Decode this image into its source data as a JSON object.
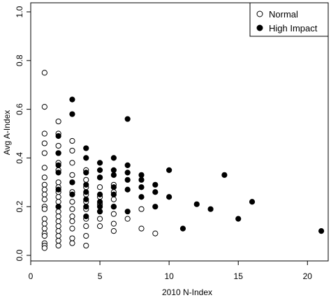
{
  "chart_data": {
    "type": "scatter",
    "xlabel": "2010 N-Index",
    "ylabel": "Avg A-Index",
    "xlim": [
      0,
      21.5
    ],
    "ylim": [
      0,
      1.0
    ],
    "xticks": [
      "0",
      "5",
      "10",
      "15",
      "20"
    ],
    "xtick_values": [
      0,
      5,
      10,
      15,
      20
    ],
    "yticks": [
      "0.0",
      "0.2",
      "0.4",
      "0.6",
      "0.8",
      "1.0"
    ],
    "ytick_values": [
      0,
      0.2,
      0.4,
      0.6,
      0.8,
      1.0
    ],
    "grid": false,
    "legend_position": "top-right",
    "series": [
      {
        "name": "Normal",
        "marker": "open-circle",
        "color": "#000000",
        "points": [
          [
            1,
            0.75
          ],
          [
            1,
            0.61
          ],
          [
            1,
            0.5
          ],
          [
            1,
            0.46
          ],
          [
            1,
            0.42
          ],
          [
            1,
            0.36
          ],
          [
            1,
            0.32
          ],
          [
            1,
            0.29
          ],
          [
            1,
            0.27
          ],
          [
            1,
            0.25
          ],
          [
            1,
            0.23
          ],
          [
            1,
            0.2
          ],
          [
            1,
            0.19
          ],
          [
            1,
            0.15
          ],
          [
            1,
            0.13
          ],
          [
            1,
            0.11
          ],
          [
            1,
            0.09
          ],
          [
            1,
            0.08
          ],
          [
            1,
            0.05
          ],
          [
            1,
            0.04
          ],
          [
            1,
            0.03
          ],
          [
            2,
            0.55
          ],
          [
            2,
            0.5
          ],
          [
            2,
            0.45
          ],
          [
            2,
            0.42
          ],
          [
            2,
            0.38
          ],
          [
            2,
            0.35
          ],
          [
            2,
            0.3
          ],
          [
            2,
            0.28
          ],
          [
            2,
            0.26
          ],
          [
            2,
            0.24
          ],
          [
            2,
            0.22
          ],
          [
            2,
            0.2
          ],
          [
            2,
            0.18
          ],
          [
            2,
            0.16
          ],
          [
            2,
            0.14
          ],
          [
            2,
            0.12
          ],
          [
            2,
            0.1
          ],
          [
            2,
            0.08
          ],
          [
            2,
            0.06
          ],
          [
            2,
            0.04
          ],
          [
            3,
            0.47
          ],
          [
            3,
            0.43
          ],
          [
            3,
            0.38
          ],
          [
            3,
            0.33
          ],
          [
            3,
            0.3
          ],
          [
            3,
            0.26
          ],
          [
            3,
            0.22
          ],
          [
            3,
            0.19
          ],
          [
            3,
            0.16
          ],
          [
            3,
            0.14
          ],
          [
            3,
            0.11
          ],
          [
            3,
            0.07
          ],
          [
            3,
            0.05
          ],
          [
            4,
            0.35
          ],
          [
            4,
            0.31
          ],
          [
            4,
            0.28
          ],
          [
            4,
            0.25
          ],
          [
            4,
            0.22
          ],
          [
            4,
            0.19
          ],
          [
            4,
            0.15
          ],
          [
            4,
            0.12
          ],
          [
            4,
            0.08
          ],
          [
            4,
            0.04
          ],
          [
            5,
            0.32
          ],
          [
            5,
            0.28
          ],
          [
            5,
            0.24
          ],
          [
            5,
            0.21
          ],
          [
            5,
            0.18
          ],
          [
            5,
            0.15
          ],
          [
            5,
            0.12
          ],
          [
            6,
            0.29
          ],
          [
            6,
            0.26
          ],
          [
            6,
            0.23
          ],
          [
            6,
            0.2
          ],
          [
            6,
            0.17
          ],
          [
            6,
            0.13
          ],
          [
            6,
            0.1
          ],
          [
            7,
            0.15
          ],
          [
            8,
            0.19
          ],
          [
            8,
            0.11
          ],
          [
            9,
            0.09
          ]
        ]
      },
      {
        "name": "High Impact",
        "marker": "filled-circle",
        "color": "#000000",
        "points": [
          [
            2,
            0.49
          ],
          [
            2,
            0.42
          ],
          [
            2,
            0.37
          ],
          [
            2,
            0.34
          ],
          [
            2,
            0.27
          ],
          [
            2,
            0.2
          ],
          [
            3,
            0.64
          ],
          [
            3,
            0.58
          ],
          [
            3,
            0.3
          ],
          [
            3,
            0.25
          ],
          [
            4,
            0.44
          ],
          [
            4,
            0.4
          ],
          [
            4,
            0.34
          ],
          [
            4,
            0.29
          ],
          [
            4,
            0.26
          ],
          [
            4,
            0.23
          ],
          [
            4,
            0.2
          ],
          [
            4,
            0.16
          ],
          [
            5,
            0.38
          ],
          [
            5,
            0.35
          ],
          [
            5,
            0.32
          ],
          [
            5,
            0.25
          ],
          [
            5,
            0.22
          ],
          [
            5,
            0.2
          ],
          [
            5,
            0.18
          ],
          [
            6,
            0.4
          ],
          [
            6,
            0.35
          ],
          [
            6,
            0.33
          ],
          [
            6,
            0.28
          ],
          [
            6,
            0.25
          ],
          [
            6,
            0.2
          ],
          [
            7,
            0.56
          ],
          [
            7,
            0.37
          ],
          [
            7,
            0.34
          ],
          [
            7,
            0.31
          ],
          [
            7,
            0.27
          ],
          [
            7,
            0.18
          ],
          [
            8,
            0.33
          ],
          [
            8,
            0.31
          ],
          [
            8,
            0.28
          ],
          [
            8,
            0.24
          ],
          [
            9,
            0.29
          ],
          [
            9,
            0.26
          ],
          [
            9,
            0.2
          ],
          [
            10,
            0.35
          ],
          [
            10,
            0.24
          ],
          [
            11,
            0.11
          ],
          [
            12,
            0.21
          ],
          [
            13,
            0.19
          ],
          [
            14,
            0.33
          ],
          [
            15,
            0.15
          ],
          [
            16,
            0.22
          ],
          [
            21,
            0.1
          ]
        ]
      }
    ]
  }
}
